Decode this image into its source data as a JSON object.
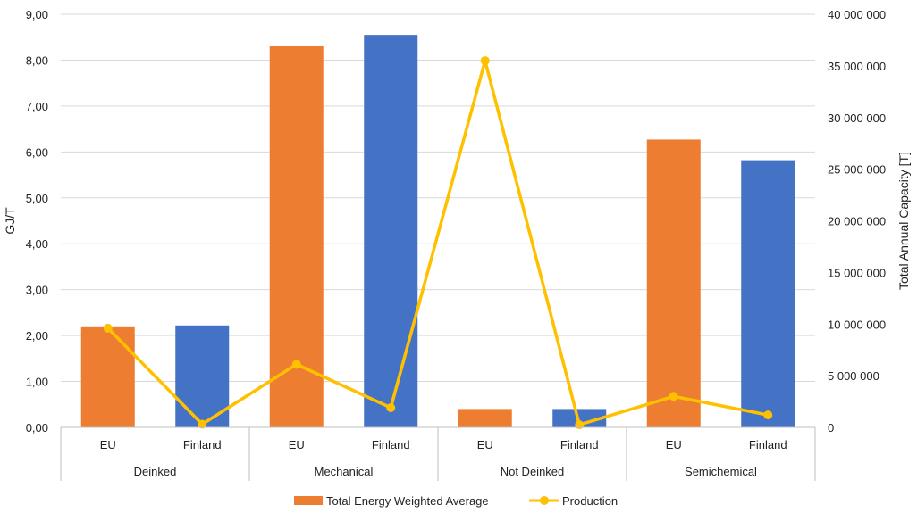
{
  "chart_data": {
    "type": "bar",
    "groups": [
      {
        "label": "Deinked",
        "categories": [
          "EU",
          "Finland"
        ]
      },
      {
        "label": "Mechanical",
        "categories": [
          "EU",
          "Finland"
        ]
      },
      {
        "label": "Not Deinked",
        "categories": [
          "EU",
          "Finland"
        ]
      },
      {
        "label": "Semichemical",
        "categories": [
          "EU",
          "Finland"
        ]
      }
    ],
    "series": [
      {
        "name": "Total Energy Weighted Average",
        "type": "bar",
        "axis": "left",
        "values": [
          2.2,
          2.22,
          8.32,
          8.55,
          0.4,
          0.4,
          6.27,
          5.82
        ],
        "colors": [
          "#ED7D31",
          "#4472C4",
          "#ED7D31",
          "#4472C4",
          "#ED7D31",
          "#4472C4",
          "#ED7D31",
          "#4472C4"
        ]
      },
      {
        "name": "Production",
        "type": "line",
        "axis": "right",
        "values": [
          9600000,
          300000,
          6100000,
          1900000,
          35500000,
          250000,
          3000000,
          1200000
        ],
        "color": "#FFC000"
      }
    ],
    "ylabel": "GJ/T",
    "y2label": "Total Annual Capacity [T]",
    "ylim": [
      0,
      9
    ],
    "y2lim": [
      0,
      40000000
    ],
    "yticks": [
      "0,00",
      "1,00",
      "2,00",
      "3,00",
      "4,00",
      "5,00",
      "6,00",
      "7,00",
      "8,00",
      "9,00"
    ],
    "y2ticks": [
      "0",
      "5 000 000",
      "10 000 000",
      "15 000 000",
      "20 000 000",
      "25 000 000",
      "30 000 000",
      "35 000 000",
      "40 000 000"
    ],
    "grid": true,
    "legend_position": "bottom",
    "legend": [
      {
        "label": "Total Energy Weighted Average",
        "color": "#ED7D31"
      },
      {
        "label": "Production",
        "color": "#FFC000"
      }
    ]
  }
}
